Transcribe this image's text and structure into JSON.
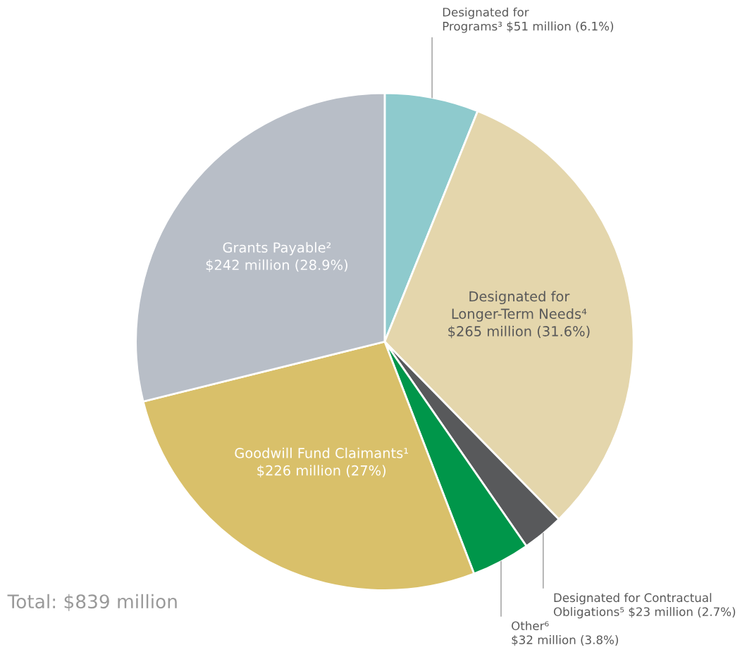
{
  "chart_data": {
    "type": "pie",
    "categories": [
      "Designated for\nPrograms³",
      "Designated for\nLonger-Term Needs⁴",
      "Designated for Contractual\nObligations⁵",
      "Other⁶",
      "Goodwill Fund Claimants¹",
      "Grants Payable²"
    ],
    "values": [
      6.1,
      31.6,
      2.7,
      3.8,
      27,
      28.9
    ],
    "value_labels": [
      "$51 million (6.1%)",
      "$265 million (31.6%)",
      "$23 million (2.7%)",
      "$32 million (3.8%)",
      "$226 million (27%)",
      "$242 million (28.9%)"
    ],
    "colors": [
      "#8ecacd",
      "#e4d6ac",
      "#58595b",
      "#00964a",
      "#d9c06a",
      "#b8bec7"
    ],
    "annotations": [
      "Total: $839 million"
    ],
    "legend": false
  }
}
